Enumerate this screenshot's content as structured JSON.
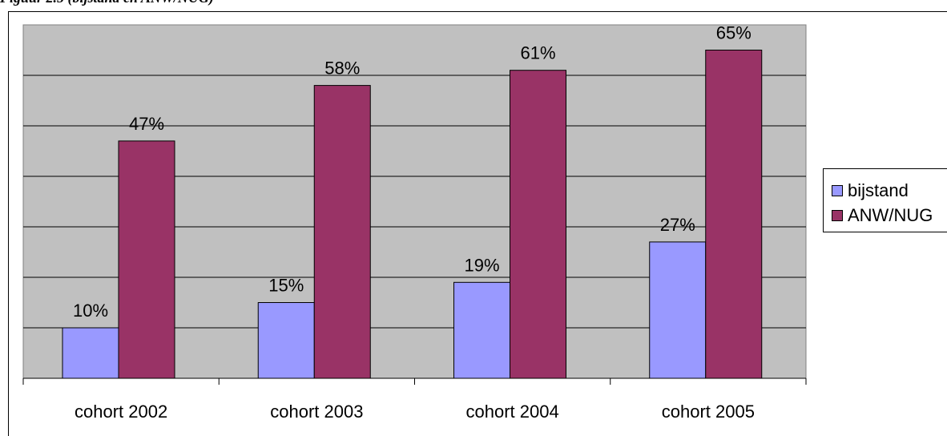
{
  "cropped_heading": "Figuur 2.5 (bijstand en ANW/NUG)",
  "colors": {
    "plot_background": "#c0c0c0",
    "bijstand": "#9999ff",
    "anw_nug": "#993366",
    "gridline": "#000000"
  },
  "chart_data": {
    "type": "bar",
    "title": "",
    "xlabel": "",
    "ylabel": "",
    "categories": [
      "cohort 2002",
      "cohort 2003",
      "cohort 2004",
      "cohort 2005"
    ],
    "series": [
      {
        "name": "bijstand",
        "values": [
          10,
          15,
          19,
          27
        ],
        "labels": [
          "10%",
          "15%",
          "19%",
          "27%"
        ]
      },
      {
        "name": "ANW/NUG",
        "values": [
          47,
          58,
          61,
          65
        ],
        "labels": [
          "47%",
          "58%",
          "61%",
          "65%"
        ]
      }
    ],
    "ylim": [
      0,
      70
    ],
    "gridlines": true,
    "legend": "right"
  }
}
